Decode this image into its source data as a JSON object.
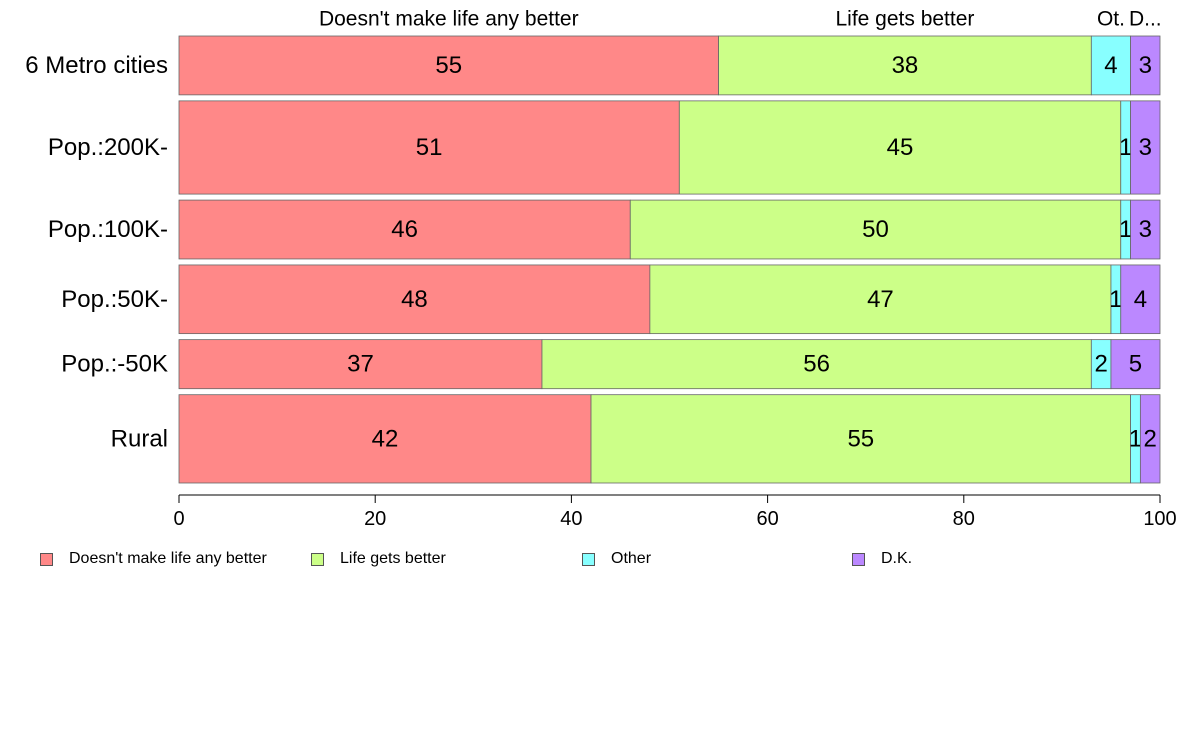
{
  "chart_data": {
    "type": "bar",
    "orientation": "horizontal",
    "stacked": true,
    "categories": [
      "6 Metro cities",
      "Pop.:200K-",
      "Pop.:100K-",
      "Pop.:50K-",
      "Pop.:-50K",
      "Rural"
    ],
    "series": [
      {
        "name": "Doesn't make life any better",
        "color": "#ff8888",
        "values": [
          55,
          51,
          46,
          48,
          37,
          42
        ]
      },
      {
        "name": "Life gets better",
        "color": "#ccff88",
        "values": [
          38,
          45,
          50,
          47,
          56,
          55
        ]
      },
      {
        "name": "Other",
        "color": "#88ffff",
        "values": [
          4,
          1,
          1,
          1,
          2,
          1
        ]
      },
      {
        "name": "D.K.",
        "color": "#bb88ff",
        "values": [
          3,
          3,
          3,
          4,
          5,
          2
        ]
      }
    ],
    "row_weights": [
      6,
      9.5,
      6,
      7,
      5,
      9
    ],
    "top_labels": [
      "Doesn't make life any better",
      "Life gets better",
      "Ot.",
      "D..."
    ],
    "xlim": [
      0,
      100
    ],
    "xticks": [
      "0",
      "20",
      "40",
      "60",
      "80",
      "100"
    ],
    "legend_position": "bottom",
    "grid": false
  }
}
